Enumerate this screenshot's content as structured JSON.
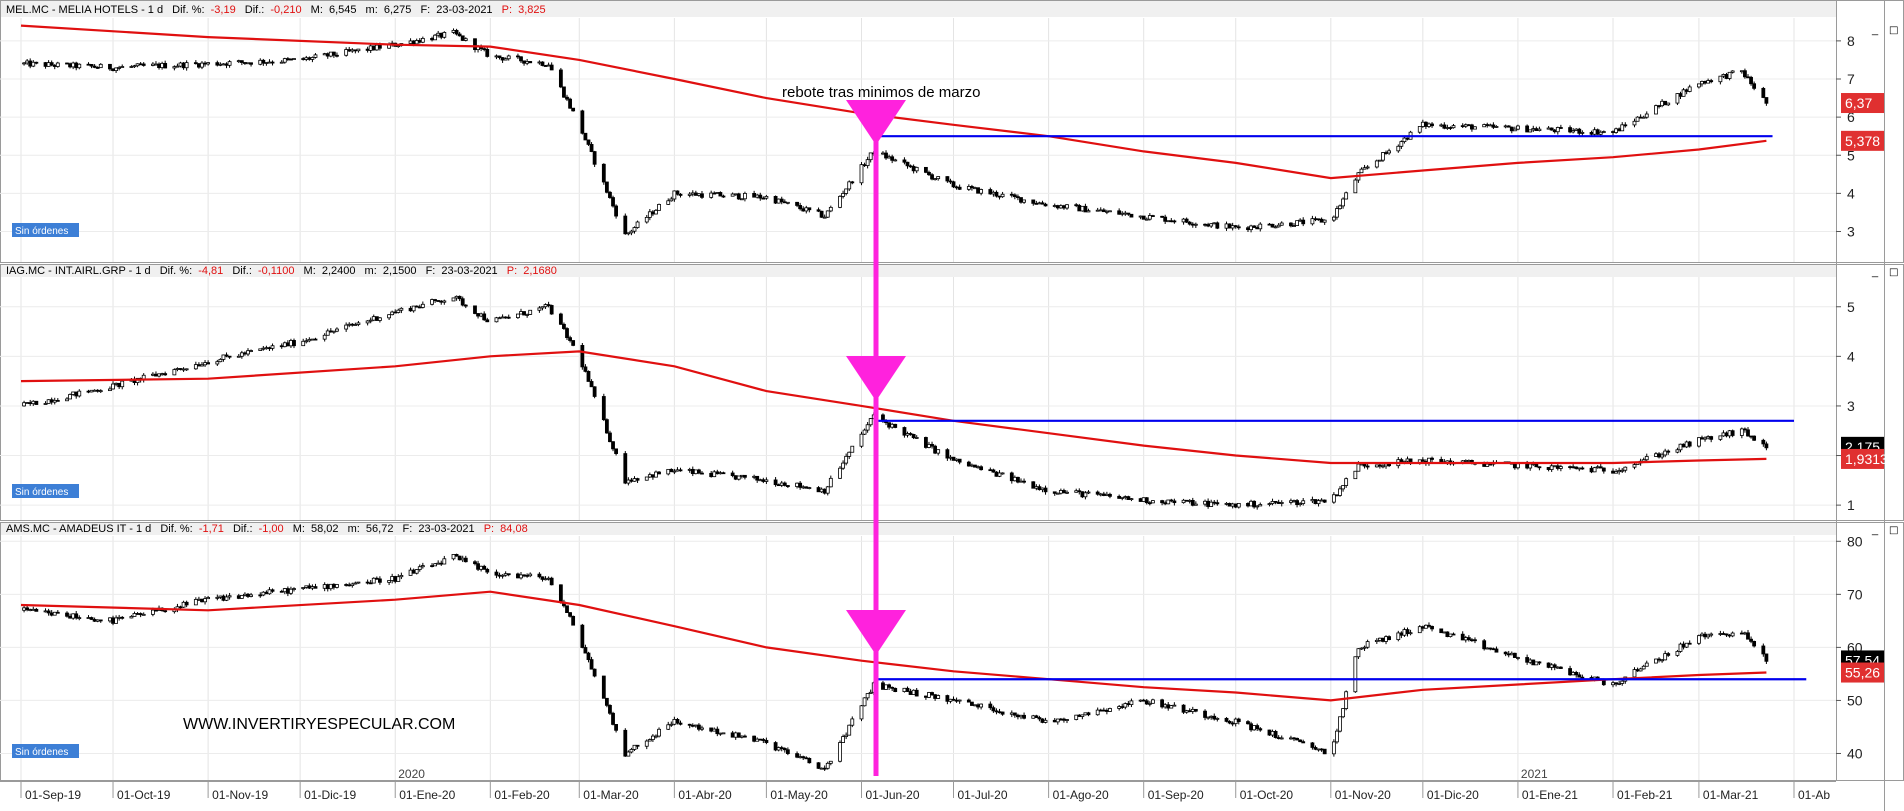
{
  "colors": {
    "ma_line": "#e01010",
    "support_line": "#0000ee",
    "arrow": "#ff22dd",
    "candle": "#000000",
    "panel_border": "#9a9a9a",
    "header_bg": "#f0f0f0",
    "header_red": "#e01010",
    "badge_blue": "#3d7fd6",
    "label_red": "#e03030",
    "label_black": "#000000"
  },
  "annotation_text": "rebote tras minimos de marzo",
  "watermark": "WWW.INVERTIRYESPECULAR.COM",
  "order_badge": "Sin órdenes",
  "window_icons": [
    "_",
    "□"
  ],
  "x_axis": {
    "labels": [
      "01-Sep-19",
      "01-Oct-19",
      "01-Nov-19",
      "01-Dic-19",
      "01-Ene-20",
      "01-Feb-20",
      "01-Mar-20",
      "01-Abr-20",
      "01-May-20",
      "01-Jun-20",
      "01-Jul-20",
      "01-Ago-20",
      "01-Sep-20",
      "01-Oct-20",
      "01-Nov-20",
      "01-Dic-20",
      "01-Ene-21",
      "01-Feb-21",
      "01-Mar-21",
      "01-Ab"
    ],
    "year_labels": [
      "2020",
      "2021"
    ]
  },
  "panels": [
    {
      "ticker_line": "MEL.MC - MELIA HOTELS -  1 d",
      "dif_pct_label": "Dif. %:",
      "dif_pct": "-3,19",
      "dif_label": "Dif.:",
      "dif": "-0,210",
      "max_label": "M:",
      "max": "6,545",
      "min_label": "m:",
      "min": "6,275",
      "date_label": "F:",
      "date": "23-03-2021",
      "p_label": "P:",
      "p": "3,825",
      "price_tag": "6,37",
      "ma_tag": "5,378"
    },
    {
      "ticker_line": "IAG.MC - INT.AIRL.GRP -  1 d",
      "dif_pct_label": "Dif. %:",
      "dif_pct": "-4,81",
      "dif_label": "Dif.:",
      "dif": "-0,1100",
      "max_label": "M:",
      "max": "2,2400",
      "min_label": "m:",
      "min": "2,1500",
      "date_label": "F:",
      "date": "23-03-2021",
      "p_label": "P:",
      "p": "2,1680",
      "price_tag": "2,175",
      "ma_tag": "1,9313"
    },
    {
      "ticker_line": "AMS.MC - AMADEUS IT -  1 d",
      "dif_pct_label": "Dif. %:",
      "dif_pct": "-1,71",
      "dif_label": "Dif.:",
      "dif": "-1,00",
      "max_label": "M:",
      "max": "58,02",
      "min_label": "m:",
      "min": "56,72",
      "date_label": "F:",
      "date": "23-03-2021",
      "p_label": "P:",
      "p": "84,08",
      "price_tag": "57,54",
      "ma_tag": "55,26"
    }
  ],
  "chart_data": [
    {
      "type": "line",
      "title": "MEL.MC - MELIA HOTELS",
      "y_ticks": [
        3,
        4,
        5,
        6,
        7,
        8
      ],
      "ylim": [
        2.2,
        8.6
      ],
      "price_series": {
        "x": [
          "2019-09-01",
          "2019-10-01",
          "2019-11-01",
          "2019-12-01",
          "2020-01-01",
          "2020-01-20",
          "2020-02-01",
          "2020-02-20",
          "2020-03-01",
          "2020-03-16",
          "2020-04-01",
          "2020-05-01",
          "2020-05-20",
          "2020-06-05",
          "2020-07-01",
          "2020-08-01",
          "2020-09-01",
          "2020-10-01",
          "2020-11-01",
          "2020-11-10",
          "2020-12-01",
          "2021-01-01",
          "2021-02-01",
          "2021-03-01",
          "2021-03-15",
          "2021-03-23"
        ],
        "y": [
          7.4,
          7.3,
          7.4,
          7.5,
          7.9,
          8.2,
          7.6,
          7.4,
          5.8,
          2.9,
          4.0,
          3.9,
          3.4,
          5.1,
          4.2,
          3.7,
          3.4,
          3.1,
          3.3,
          4.5,
          5.8,
          5.7,
          5.6,
          6.9,
          7.2,
          6.37
        ]
      },
      "ma_series": {
        "x": [
          "2019-09-01",
          "2019-11-01",
          "2020-01-01",
          "2020-02-01",
          "2020-03-01",
          "2020-04-01",
          "2020-05-01",
          "2020-06-01",
          "2020-07-01",
          "2020-08-01",
          "2020-09-01",
          "2020-10-01",
          "2020-11-01",
          "2020-12-01",
          "2021-01-01",
          "2021-02-01",
          "2021-03-01",
          "2021-03-23"
        ],
        "y": [
          8.4,
          8.1,
          7.9,
          7.85,
          7.5,
          7.0,
          6.5,
          6.1,
          5.8,
          5.5,
          5.1,
          4.8,
          4.4,
          4.6,
          4.8,
          4.95,
          5.15,
          5.378
        ]
      },
      "support_level": 5.5,
      "price_tag_value": 6.37,
      "ma_tag_value": 5.378
    },
    {
      "type": "line",
      "title": "IAG.MC - INT.AIRL.GRP",
      "y_ticks": [
        1,
        2,
        3,
        4,
        5
      ],
      "ylim": [
        0.7,
        5.6
      ],
      "price_series": {
        "x": [
          "2019-09-01",
          "2019-10-01",
          "2019-11-01",
          "2019-12-01",
          "2020-01-01",
          "2020-01-20",
          "2020-02-01",
          "2020-02-20",
          "2020-03-01",
          "2020-03-16",
          "2020-04-01",
          "2020-05-01",
          "2020-05-20",
          "2020-06-05",
          "2020-07-01",
          "2020-08-01",
          "2020-09-01",
          "2020-10-01",
          "2020-11-01",
          "2020-11-10",
          "2020-12-01",
          "2021-01-01",
          "2021-02-01",
          "2021-03-01",
          "2021-03-15",
          "2021-03-23"
        ],
        "y": [
          3.0,
          3.4,
          3.9,
          4.3,
          4.9,
          5.2,
          4.7,
          5.0,
          4.0,
          1.5,
          1.7,
          1.5,
          1.3,
          2.8,
          1.9,
          1.3,
          1.1,
          1.0,
          1.1,
          1.8,
          1.9,
          1.8,
          1.7,
          2.3,
          2.5,
          2.175
        ]
      },
      "ma_series": {
        "x": [
          "2019-09-01",
          "2019-11-01",
          "2020-01-01",
          "2020-02-01",
          "2020-03-01",
          "2020-04-01",
          "2020-05-01",
          "2020-06-01",
          "2020-07-01",
          "2020-08-01",
          "2020-09-01",
          "2020-10-01",
          "2020-11-01",
          "2020-12-01",
          "2021-01-01",
          "2021-02-01",
          "2021-03-01",
          "2021-03-23"
        ],
        "y": [
          3.5,
          3.55,
          3.8,
          4.0,
          4.1,
          3.8,
          3.3,
          3.0,
          2.7,
          2.45,
          2.2,
          2.0,
          1.85,
          1.85,
          1.85,
          1.85,
          1.9,
          1.9313
        ]
      },
      "support_level": 2.7,
      "price_tag_value": 2.175,
      "ma_tag_value": 1.9313
    },
    {
      "type": "line",
      "title": "AMS.MC - AMADEUS IT",
      "y_ticks": [
        40,
        50,
        60,
        70,
        80
      ],
      "ylim": [
        35,
        81
      ],
      "price_series": {
        "x": [
          "2019-09-01",
          "2019-10-01",
          "2019-11-01",
          "2019-12-01",
          "2020-01-01",
          "2020-01-20",
          "2020-02-01",
          "2020-02-20",
          "2020-03-01",
          "2020-03-16",
          "2020-04-01",
          "2020-05-01",
          "2020-05-20",
          "2020-06-05",
          "2020-07-01",
          "2020-08-01",
          "2020-09-01",
          "2020-10-01",
          "2020-11-01",
          "2020-11-10",
          "2020-12-01",
          "2021-01-01",
          "2021-02-01",
          "2021-03-01",
          "2021-03-15",
          "2021-03-23"
        ],
        "y": [
          67,
          65,
          69,
          71,
          73,
          77,
          74,
          73,
          62,
          40,
          46,
          42,
          37,
          53,
          50,
          46,
          50,
          46,
          40,
          60,
          64,
          58,
          53,
          62,
          63,
          57.54
        ]
      },
      "ma_series": {
        "x": [
          "2019-09-01",
          "2019-11-01",
          "2020-01-01",
          "2020-02-01",
          "2020-03-01",
          "2020-04-01",
          "2020-05-01",
          "2020-06-01",
          "2020-07-01",
          "2020-08-01",
          "2020-09-01",
          "2020-10-01",
          "2020-11-01",
          "2020-12-01",
          "2021-01-01",
          "2021-02-01",
          "2021-03-01",
          "2021-03-23"
        ],
        "y": [
          68,
          67,
          69,
          70.5,
          68,
          64,
          60,
          57.5,
          55.5,
          54,
          52.5,
          51.5,
          50,
          52,
          53,
          54,
          54.8,
          55.26
        ]
      },
      "support_level": 54,
      "price_tag_value": 57.54,
      "ma_tag_value": 55.26
    }
  ]
}
